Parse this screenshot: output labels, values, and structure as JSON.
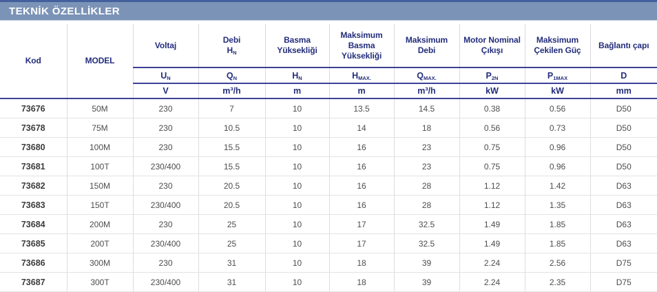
{
  "title_bar": {
    "label": "TEKNİK ÖZELLİKLER"
  },
  "colors": {
    "bar_background": "#7B93B6",
    "bar_top_border": "#44609C",
    "header_text": "#232D7B",
    "navy_rule": "#3B3F96",
    "light_rule": "#D9D9DE",
    "data_text": "#4C4C4C"
  },
  "table": {
    "columns": [
      {
        "label": "Kod"
      },
      {
        "label": "MODEL"
      },
      {
        "label": "Voltaj",
        "symbol_base": "U",
        "symbol_sub": "N",
        "unit": "V"
      },
      {
        "label": "Debi",
        "label_symbol_base": "H",
        "label_symbol_sub": "N",
        "symbol_base": "Q",
        "symbol_sub": "N",
        "unit": "m³/h"
      },
      {
        "label": "Basma Yüksekliği",
        "symbol_base": "H",
        "symbol_sub": "N",
        "unit": "m"
      },
      {
        "label": "Maksimum Basma Yüksekliği",
        "symbol_base": "H",
        "symbol_sub": "MAX.",
        "unit": "m"
      },
      {
        "label": "Maksimum Debi",
        "symbol_base": "Q",
        "symbol_sub": "MAX.",
        "unit": "m³/h"
      },
      {
        "label": "Motor Nominal Çıkışı",
        "symbol_base": "P",
        "symbol_sub": "2N",
        "unit": "kW"
      },
      {
        "label": "Maksimum Çekilen Güç",
        "symbol_base": "P",
        "symbol_sub": "1MAX",
        "unit": "kW"
      },
      {
        "label": "Bağlantı çapı",
        "symbol_base": "D",
        "symbol_sub": "",
        "unit": "mm"
      }
    ],
    "rows": [
      [
        "73676",
        "50M",
        "230",
        "7",
        "10",
        "13.5",
        "14.5",
        "0.38",
        "0.56",
        "D50"
      ],
      [
        "73678",
        "75M",
        "230",
        "10.5",
        "10",
        "14",
        "18",
        "0.56",
        "0.73",
        "D50"
      ],
      [
        "73680",
        "100M",
        "230",
        "15.5",
        "10",
        "16",
        "23",
        "0.75",
        "0.96",
        "D50"
      ],
      [
        "73681",
        "100T",
        "230/400",
        "15.5",
        "10",
        "16",
        "23",
        "0.75",
        "0.96",
        "D50"
      ],
      [
        "73682",
        "150M",
        "230",
        "20.5",
        "10",
        "16",
        "28",
        "1.12",
        "1.42",
        "D63"
      ],
      [
        "73683",
        "150T",
        "230/400",
        "20.5",
        "10",
        "16",
        "28",
        "1.12",
        "1.35",
        "D63"
      ],
      [
        "73684",
        "200M",
        "230",
        "25",
        "10",
        "17",
        "32.5",
        "1.49",
        "1.85",
        "D63"
      ],
      [
        "73685",
        "200T",
        "230/400",
        "25",
        "10",
        "17",
        "32.5",
        "1.49",
        "1.85",
        "D63"
      ],
      [
        "73686",
        "300M",
        "230",
        "31",
        "10",
        "18",
        "39",
        "2.24",
        "2.56",
        "D75"
      ],
      [
        "73687",
        "300T",
        "230/400",
        "31",
        "10",
        "18",
        "39",
        "2.24",
        "2.35",
        "D75"
      ]
    ]
  }
}
